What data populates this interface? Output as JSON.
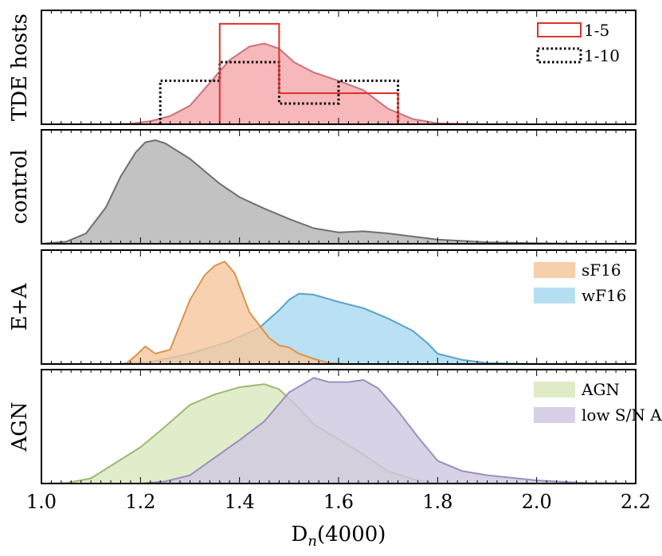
{
  "chart_data": {
    "type": "area",
    "xlabel_main": "D",
    "xlabel_sub": "n",
    "xlabel_rest": "(4000)",
    "xlim": [
      1.0,
      2.2
    ],
    "x_ticks": [
      "1.0",
      "1.2",
      "1.4",
      "1.6",
      "1.8",
      "2.0",
      "2.2"
    ],
    "x_tick_values": [
      1.0,
      1.2,
      1.4,
      1.6,
      1.8,
      2.0,
      2.2
    ],
    "panels": [
      {
        "id": "tde",
        "ylabel": "TDE hosts",
        "ymax": 1.1,
        "kde": [
          {
            "name": "TDE hosts KDE",
            "fill": "#f4a6a9",
            "stroke": "#c9737c",
            "x": [
              1.0,
              1.12,
              1.18,
              1.22,
              1.26,
              1.3,
              1.34,
              1.38,
              1.42,
              1.45,
              1.48,
              1.51,
              1.55,
              1.6,
              1.65,
              1.7,
              1.75,
              1.8,
              1.9,
              2.0,
              2.2
            ],
            "y": [
              0.0,
              0.0,
              0.005,
              0.03,
              0.08,
              0.18,
              0.4,
              0.62,
              0.75,
              0.78,
              0.73,
              0.6,
              0.5,
              0.42,
              0.33,
              0.15,
              0.05,
              0.01,
              0.0,
              0.0,
              0.0
            ]
          }
        ],
        "histograms": [
          {
            "name": "1-10",
            "style": "dotted",
            "color": "#000000",
            "edges": [
              1.24,
              1.36,
              1.48,
              1.6,
              1.72
            ],
            "values": [
              0.42,
              0.6,
              0.2,
              0.42
            ]
          },
          {
            "name": "1-5",
            "style": "solid",
            "color": "#e0312a",
            "edges": [
              1.36,
              1.48,
              1.6,
              1.72
            ],
            "values": [
              0.97,
              0.3,
              0.3
            ]
          }
        ],
        "legend": [
          {
            "label": "1-5",
            "style": "solid",
            "color": "#e0312a"
          },
          {
            "label": "1-10",
            "style": "dotted",
            "color": "#000000"
          }
        ]
      },
      {
        "id": "control",
        "ylabel": "control",
        "ymax": 1.1,
        "kde": [
          {
            "name": "control KDE",
            "fill": "#b3b3b3",
            "stroke": "#6f6f6f",
            "x": [
              1.0,
              1.05,
              1.09,
              1.13,
              1.16,
              1.19,
              1.21,
              1.23,
              1.25,
              1.28,
              1.3,
              1.33,
              1.36,
              1.4,
              1.45,
              1.5,
              1.55,
              1.6,
              1.65,
              1.7,
              1.8,
              1.9,
              2.0,
              2.1,
              2.2
            ],
            "y": [
              0.0,
              0.02,
              0.1,
              0.35,
              0.65,
              0.88,
              0.98,
              1.0,
              0.97,
              0.88,
              0.82,
              0.7,
              0.58,
              0.45,
              0.34,
              0.24,
              0.15,
              0.11,
              0.12,
              0.1,
              0.04,
              0.015,
              0.005,
              0.0,
              0.0
            ]
          }
        ],
        "histograms": [],
        "legend": []
      },
      {
        "id": "ea",
        "ylabel": "E+A",
        "ymax": 1.1,
        "kde": [
          {
            "name": "wF16",
            "fill": "#a8d8f0",
            "stroke": "#5aa3cb",
            "x": [
              1.0,
              1.15,
              1.22,
              1.3,
              1.38,
              1.44,
              1.48,
              1.5,
              1.52,
              1.55,
              1.6,
              1.65,
              1.7,
              1.75,
              1.78,
              1.8,
              1.85,
              1.9,
              2.0,
              2.2
            ],
            "y": [
              0.0,
              0.0,
              0.02,
              0.1,
              0.22,
              0.35,
              0.52,
              0.62,
              0.68,
              0.67,
              0.6,
              0.54,
              0.44,
              0.32,
              0.2,
              0.1,
              0.04,
              0.01,
              0.0,
              0.0
            ]
          },
          {
            "name": "sF16",
            "fill": "#f6c79c",
            "stroke": "#d9944f",
            "x": [
              1.0,
              1.17,
              1.19,
              1.21,
              1.23,
              1.26,
              1.3,
              1.33,
              1.35,
              1.37,
              1.39,
              1.42,
              1.46,
              1.48,
              1.5,
              1.52,
              1.55,
              1.58,
              1.62,
              2.2
            ],
            "y": [
              0.0,
              0.0,
              0.08,
              0.17,
              0.1,
              0.14,
              0.62,
              0.86,
              0.95,
              0.99,
              0.88,
              0.5,
              0.25,
              0.18,
              0.16,
              0.1,
              0.05,
              0.01,
              0.0,
              0.0
            ]
          }
        ],
        "histograms": [],
        "legend": [
          {
            "label": "sF16",
            "style": "patch",
            "color": "#f6c79c"
          },
          {
            "label": "wF16",
            "style": "patch",
            "color": "#a8d8f0"
          }
        ]
      },
      {
        "id": "agn",
        "ylabel": "AGN",
        "ymax": 1.1,
        "kde": [
          {
            "name": "AGN",
            "fill": "#d9e8bd",
            "stroke": "#9db872",
            "x": [
              1.0,
              1.05,
              1.1,
              1.15,
              1.2,
              1.25,
              1.3,
              1.35,
              1.4,
              1.45,
              1.48,
              1.52,
              1.55,
              1.6,
              1.65,
              1.7,
              1.75,
              1.8,
              2.2
            ],
            "y": [
              0.0,
              0.005,
              0.05,
              0.2,
              0.35,
              0.55,
              0.76,
              0.86,
              0.93,
              0.96,
              0.91,
              0.73,
              0.57,
              0.43,
              0.28,
              0.12,
              0.04,
              0.0,
              0.0
            ]
          },
          {
            "name": "low S/N AGN",
            "fill": "#cfc7e0",
            "stroke": "#9a8fbd",
            "x": [
              1.0,
              1.2,
              1.25,
              1.3,
              1.35,
              1.4,
              1.45,
              1.5,
              1.55,
              1.58,
              1.62,
              1.65,
              1.68,
              1.72,
              1.76,
              1.8,
              1.85,
              1.9,
              2.0,
              2.1,
              2.2
            ],
            "y": [
              0.0,
              0.0,
              0.02,
              0.08,
              0.25,
              0.42,
              0.6,
              0.88,
              1.02,
              0.98,
              0.98,
              1.0,
              0.92,
              0.7,
              0.45,
              0.22,
              0.12,
              0.08,
              0.03,
              0.005,
              0.0
            ]
          }
        ],
        "histograms": [],
        "legend": [
          {
            "label": "AGN",
            "style": "patch",
            "color": "#d9e8bd"
          },
          {
            "label": "low S/N AGN",
            "style": "patch",
            "color": "#cfc7e0"
          }
        ]
      }
    ]
  }
}
